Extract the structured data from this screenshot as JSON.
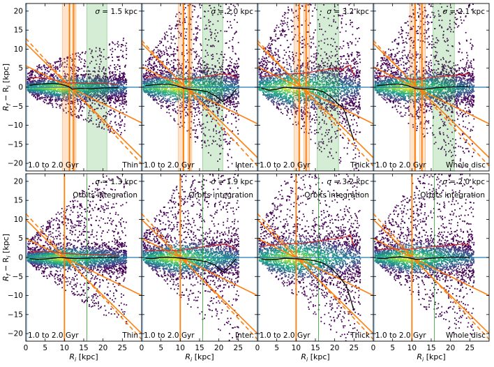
{
  "chart_data": {
    "type": "heatmap",
    "description_axes": {
      "xlabel_main": "R",
      "xlabel_sub": "i",
      "xlabel_unit": " [kpc]",
      "ylabel_main": "R",
      "ylabel_sub1": "f",
      "ylabel_mid": " − R",
      "ylabel_sub2": "i",
      "ylabel_unit": " [kpc]",
      "xlim": [
        0,
        30
      ],
      "ylim": [
        -22,
        22
      ],
      "xticks": [
        0,
        5,
        10,
        15,
        20,
        25
      ],
      "yticks": [
        -20,
        -15,
        -10,
        -5,
        0,
        5,
        10,
        15,
        20
      ]
    },
    "sigma_prefix": "σ = ",
    "age_label": "1.0 to 2.0 Gyr",
    "orbits_label": "Orbits integration",
    "series_legend": {
      "median": "black",
      "dispersion": "#d62728",
      "guides": "#ff7f0e",
      "zero": "#1f77b4"
    },
    "panels": [
      {
        "row": 0,
        "col": 0,
        "population": "Thin",
        "sigma": "1.5 kpc",
        "orbits": false,
        "xmax_data": 26,
        "spread": 1.0,
        "orange_bands": [
          [
            9.5,
            11.5
          ],
          [
            12.0,
            13.0
          ]
        ],
        "green_band": [
          15.8,
          21.0
        ],
        "orange_lines": [
          11.3,
          12.4
        ],
        "median": [
          [
            1,
            0.5
          ],
          [
            3,
            0.8
          ],
          [
            5,
            0.9
          ],
          [
            7,
            1.0
          ],
          [
            9,
            0.8
          ],
          [
            11,
            0.2
          ],
          [
            12,
            -0.5
          ],
          [
            14,
            -0.3
          ],
          [
            17,
            -0.4
          ],
          [
            20,
            -0.2
          ],
          [
            24,
            -0.1
          ]
        ],
        "dispersion": [
          [
            1,
            2.3
          ],
          [
            3,
            2.5
          ],
          [
            5,
            2.4
          ],
          [
            7,
            2.0
          ],
          [
            9,
            1.5
          ],
          [
            11,
            1.1
          ],
          [
            13,
            1.2
          ],
          [
            15,
            1.0
          ],
          [
            18,
            1.0
          ],
          [
            21,
            1.0
          ],
          [
            24,
            0.7
          ]
        ]
      },
      {
        "row": 0,
        "col": 1,
        "population": "Inter.",
        "sigma": "2.0 kpc",
        "orbits": false,
        "xmax_data": 25,
        "spread": 1.6,
        "orange_bands": [
          [
            9.5,
            11.0
          ],
          [
            12.0,
            13.0
          ]
        ],
        "green_band": [
          15.8,
          21.0
        ],
        "orange_lines": [
          10.8,
          12.4
        ],
        "median": [
          [
            1,
            0.4
          ],
          [
            3,
            0.6
          ],
          [
            5,
            0.8
          ],
          [
            7,
            0.8
          ],
          [
            9,
            0.4
          ],
          [
            11,
            -0.3
          ],
          [
            13,
            -0.6
          ],
          [
            15,
            -0.8
          ],
          [
            17,
            -1.2
          ],
          [
            19,
            -2.2
          ],
          [
            21,
            -3.8
          ],
          [
            23,
            -2.5
          ],
          [
            24.5,
            -0.5
          ]
        ],
        "dispersion": [
          [
            1,
            2.6
          ],
          [
            3,
            2.8
          ],
          [
            5,
            2.7
          ],
          [
            7,
            2.4
          ],
          [
            9,
            2.2
          ],
          [
            11,
            2.0
          ],
          [
            13,
            2.3
          ],
          [
            15,
            2.6
          ],
          [
            17,
            2.9
          ],
          [
            19,
            3.2
          ],
          [
            21,
            3.5
          ],
          [
            23,
            3.2
          ],
          [
            24.5,
            2.5
          ]
        ]
      },
      {
        "row": 0,
        "col": 2,
        "population": "Thick",
        "sigma": "3.2 kpc",
        "orbits": false,
        "xmax_data": 26.5,
        "spread": 2.2,
        "orange_bands": [
          [
            9.5,
            11.0
          ],
          [
            12.0,
            13.5
          ]
        ],
        "green_band": [
          15.5,
          21.0
        ],
        "orange_lines": [
          10.8,
          12.6
        ],
        "median": [
          [
            1,
            -0.2
          ],
          [
            3,
            -0.8
          ],
          [
            5,
            -0.5
          ],
          [
            7,
            0.0
          ],
          [
            9,
            -0.2
          ],
          [
            11,
            -0.3
          ],
          [
            13,
            -0.4
          ],
          [
            15,
            -0.6
          ],
          [
            17,
            -1.2
          ],
          [
            19,
            -2.5
          ],
          [
            21,
            -4.5
          ],
          [
            22,
            -5.0
          ],
          [
            23,
            -7.5
          ],
          [
            24,
            -11.0
          ],
          [
            25,
            -14.0
          ]
        ],
        "dispersion": [
          [
            1,
            2.8
          ],
          [
            3,
            3.0
          ],
          [
            5,
            3.2
          ],
          [
            7,
            3.5
          ],
          [
            9,
            3.5
          ],
          [
            11,
            3.6
          ],
          [
            13,
            3.8
          ],
          [
            15,
            4.2
          ],
          [
            17,
            4.5
          ],
          [
            19,
            4.8
          ],
          [
            21,
            5.0
          ],
          [
            22,
            4.5
          ],
          [
            23,
            5.5
          ],
          [
            24,
            5.8
          ],
          [
            25,
            3.0
          ]
        ]
      },
      {
        "row": 0,
        "col": 3,
        "population": "Whole disc",
        "sigma": "2.1 kpc",
        "orbits": false,
        "xmax_data": 26,
        "spread": 1.5,
        "orange_bands": [
          [
            9.5,
            11.0
          ],
          [
            12.0,
            13.5
          ]
        ],
        "green_band": [
          15.5,
          21.0
        ],
        "orange_lines": [
          10.8,
          12.6
        ],
        "median": [
          [
            1,
            0.4
          ],
          [
            3,
            0.6
          ],
          [
            5,
            0.8
          ],
          [
            7,
            0.8
          ],
          [
            9,
            0.4
          ],
          [
            11,
            -0.4
          ],
          [
            13,
            -0.5
          ],
          [
            15,
            -0.3
          ],
          [
            17,
            -0.1
          ],
          [
            20,
            0.1
          ],
          [
            23,
            0.2
          ],
          [
            25,
            0.1
          ]
        ],
        "dispersion": [
          [
            1,
            2.8
          ],
          [
            3,
            2.9
          ],
          [
            5,
            2.7
          ],
          [
            7,
            2.5
          ],
          [
            9,
            2.2
          ],
          [
            11,
            2.0
          ],
          [
            13,
            2.3
          ],
          [
            15,
            2.6
          ],
          [
            17,
            2.8
          ],
          [
            20,
            3.0
          ],
          [
            23,
            3.3
          ],
          [
            25,
            3.6
          ]
        ]
      },
      {
        "row": 1,
        "col": 0,
        "population": "Thin",
        "sigma": "1.3 kpc",
        "orbits": true,
        "xmax_data": 26,
        "spread": 1.0,
        "orange_bands": [],
        "green_band": null,
        "orange_lines": [
          10.0
        ],
        "median": [
          [
            1,
            -0.3
          ],
          [
            3,
            -0.5
          ],
          [
            5,
            -0.4
          ],
          [
            7,
            -0.2
          ],
          [
            9,
            0.0
          ],
          [
            11,
            -0.2
          ],
          [
            13,
            -0.3
          ],
          [
            16,
            -0.2
          ],
          [
            20,
            0.0
          ],
          [
            24,
            0.0
          ]
        ],
        "dispersion": [
          [
            1,
            1.4
          ],
          [
            3,
            1.6
          ],
          [
            5,
            1.6
          ],
          [
            7,
            1.5
          ],
          [
            9,
            1.2
          ],
          [
            11,
            1.0
          ],
          [
            13,
            0.9
          ],
          [
            16,
            0.8
          ],
          [
            20,
            0.7
          ],
          [
            24,
            0.5
          ]
        ]
      },
      {
        "row": 1,
        "col": 1,
        "population": "Inter.",
        "sigma": "1.9 kpc",
        "orbits": true,
        "xmax_data": 25,
        "spread": 1.6,
        "orange_bands": [],
        "green_band": null,
        "orange_lines": [
          10.0
        ],
        "median": [
          [
            1,
            -0.2
          ],
          [
            3,
            -0.3
          ],
          [
            5,
            0.0
          ],
          [
            7,
            0.1
          ],
          [
            9,
            -0.1
          ],
          [
            11,
            -0.3
          ],
          [
            13,
            -0.5
          ],
          [
            15,
            -0.8
          ],
          [
            17,
            -1.2
          ],
          [
            19,
            -2.0
          ],
          [
            21,
            -3.8
          ],
          [
            23,
            -2.0
          ],
          [
            24.5,
            -0.4
          ]
        ],
        "dispersion": [
          [
            1,
            1.8
          ],
          [
            3,
            1.9
          ],
          [
            5,
            1.9
          ],
          [
            7,
            1.8
          ],
          [
            9,
            1.8
          ],
          [
            11,
            2.0
          ],
          [
            13,
            2.3
          ],
          [
            15,
            2.7
          ],
          [
            17,
            3.0
          ],
          [
            19,
            3.2
          ],
          [
            21,
            3.5
          ],
          [
            23,
            3.0
          ],
          [
            24.5,
            2.0
          ]
        ]
      },
      {
        "row": 1,
        "col": 2,
        "population": "Thick",
        "sigma": "3.2 kpc",
        "orbits": true,
        "xmax_data": 26.5,
        "spread": 2.2,
        "orange_bands": [],
        "green_band": null,
        "orange_lines": [
          10.0
        ],
        "median": [
          [
            1,
            -0.4
          ],
          [
            3,
            -0.6
          ],
          [
            5,
            -0.5
          ],
          [
            7,
            -0.2
          ],
          [
            9,
            -0.3
          ],
          [
            11,
            -0.4
          ],
          [
            13,
            -0.6
          ],
          [
            15,
            -0.9
          ],
          [
            17,
            -1.5
          ],
          [
            19,
            -2.8
          ],
          [
            21,
            -4.8
          ],
          [
            23,
            -7.5
          ],
          [
            24,
            -10.5
          ],
          [
            25,
            -14.0
          ]
        ],
        "dispersion": [
          [
            1,
            2.8
          ],
          [
            3,
            3.2
          ],
          [
            5,
            3.4
          ],
          [
            7,
            3.6
          ],
          [
            9,
            3.6
          ],
          [
            11,
            3.7
          ],
          [
            13,
            3.9
          ],
          [
            15,
            4.2
          ],
          [
            17,
            4.5
          ],
          [
            19,
            4.8
          ],
          [
            21,
            5.0
          ],
          [
            23,
            5.5
          ],
          [
            24,
            6.0
          ],
          [
            25,
            3.0
          ]
        ]
      },
      {
        "row": 1,
        "col": 3,
        "population": "Whole disc",
        "sigma": "2.0 kpc",
        "orbits": true,
        "xmax_data": 26,
        "spread": 1.5,
        "orange_bands": [],
        "green_band": null,
        "orange_lines": [
          10.0
        ],
        "median": [
          [
            1,
            -0.2
          ],
          [
            3,
            -0.3
          ],
          [
            5,
            0.0
          ],
          [
            7,
            0.2
          ],
          [
            9,
            -0.1
          ],
          [
            11,
            -0.5
          ],
          [
            13,
            -0.4
          ],
          [
            15,
            -0.2
          ],
          [
            17,
            -0.1
          ],
          [
            20,
            0.1
          ],
          [
            23,
            0.1
          ],
          [
            25,
            0.0
          ]
        ],
        "dispersion": [
          [
            1,
            2.0
          ],
          [
            3,
            2.2
          ],
          [
            5,
            2.3
          ],
          [
            7,
            2.2
          ],
          [
            9,
            2.2
          ],
          [
            11,
            2.3
          ],
          [
            13,
            2.6
          ],
          [
            15,
            2.8
          ],
          [
            17,
            3.0
          ],
          [
            20,
            3.2
          ],
          [
            23,
            3.5
          ],
          [
            25,
            3.4
          ]
        ]
      }
    ],
    "guide_lines": {
      "solid_a": {
        "y_at_0": 11.5,
        "slope": -1.0,
        "note": "slope -1 solid line"
      },
      "solid_b": {
        "intercept_x": 10.0,
        "slope": -0.5
      },
      "dashed": {
        "slope": -1.0,
        "offset": 0
      }
    }
  }
}
